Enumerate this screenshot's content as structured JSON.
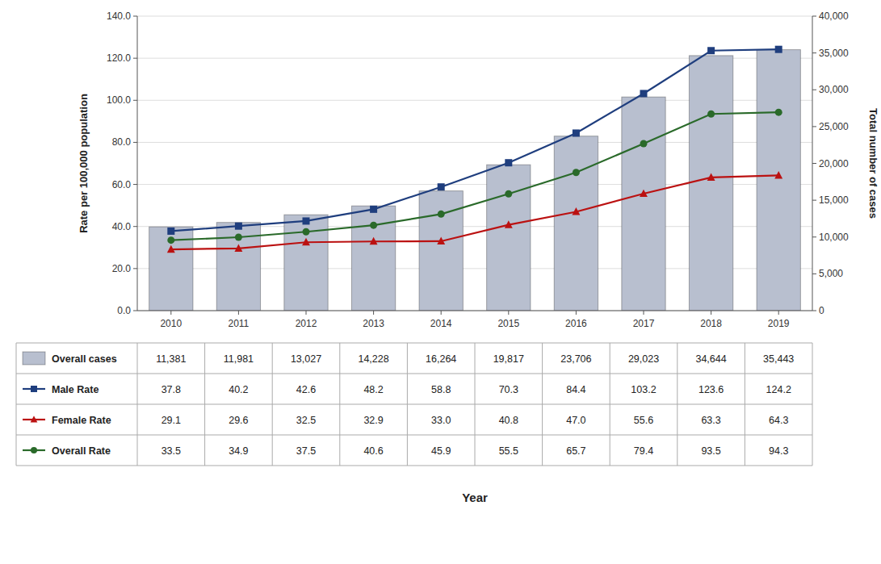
{
  "chart_data": {
    "type": "bar",
    "x_label": "Year",
    "y_label": "Rate per 100,000 population",
    "y2_label": "Total number of cases",
    "categories": [
      "2010",
      "2011",
      "2012",
      "2013",
      "2014",
      "2015",
      "2016",
      "2017",
      "2018",
      "2019"
    ],
    "ylim": [
      0,
      140
    ],
    "yticks": [
      {
        "value": 0,
        "label": "0.0"
      },
      {
        "value": 20,
        "label": "20.0"
      },
      {
        "value": 40,
        "label": "40.0"
      },
      {
        "value": 60,
        "label": "60.0"
      },
      {
        "value": 80,
        "label": "80.0"
      },
      {
        "value": 100,
        "label": "100.0"
      },
      {
        "value": 120,
        "label": "120.0"
      },
      {
        "value": 140,
        "label": "140.0"
      }
    ],
    "y2lim": [
      0,
      40000
    ],
    "y2ticks": [
      0,
      {
        "value": 5000,
        "label": "5,000"
      },
      {
        "value": 10000,
        "label": "10,000"
      },
      {
        "value": 15000,
        "label": "15,000"
      },
      {
        "value": 20000,
        "label": "20,000"
      },
      {
        "value": 25000,
        "label": "25,000"
      },
      {
        "value": 30000,
        "label": "30,000"
      },
      {
        "value": 35000,
        "label": "35,000"
      },
      {
        "value": 40000,
        "label": "40,000"
      }
    ],
    "grid": true,
    "series": [
      {
        "name": "Overall cases",
        "type": "bar",
        "axis": "y2",
        "color": "#b8bfcf",
        "values": [
          11381,
          11981,
          13027,
          14228,
          16264,
          19817,
          23706,
          29023,
          34644,
          35443
        ],
        "value_labels": [
          "11,381",
          "11,981",
          "13,027",
          "14,228",
          "16,264",
          "19,817",
          "23,706",
          "29,023",
          "34,644",
          "35,443"
        ]
      },
      {
        "name": "Male Rate",
        "type": "line",
        "color": "#1f3e7e",
        "marker": "square",
        "values": [
          37.8,
          40.2,
          42.6,
          48.2,
          58.8,
          70.3,
          84.4,
          103.2,
          123.6,
          124.2
        ],
        "value_labels": [
          "37.8",
          "40.2",
          "42.6",
          "48.2",
          "58.8",
          "70.3",
          "84.4",
          "103.2",
          "123.6",
          "124.2"
        ]
      },
      {
        "name": "Female Rate",
        "type": "line",
        "color": "#bb1111",
        "marker": "triangle",
        "values": [
          29.1,
          29.6,
          32.5,
          32.9,
          33.0,
          40.8,
          47.0,
          55.6,
          63.3,
          64.3
        ],
        "value_labels": [
          "29.1",
          "29.6",
          "32.5",
          "32.9",
          "33.0",
          "40.8",
          "47.0",
          "55.6",
          "63.3",
          "64.3"
        ]
      },
      {
        "name": "Overall Rate",
        "type": "line",
        "color": "#2a6a2a",
        "marker": "circle",
        "values": [
          33.5,
          34.9,
          37.5,
          40.6,
          45.9,
          55.5,
          65.7,
          79.4,
          93.5,
          94.3
        ],
        "value_labels": [
          "33.5",
          "34.9",
          "37.5",
          "40.6",
          "45.9",
          "55.5",
          "65.7",
          "79.4",
          "93.5",
          "94.3"
        ]
      }
    ]
  }
}
